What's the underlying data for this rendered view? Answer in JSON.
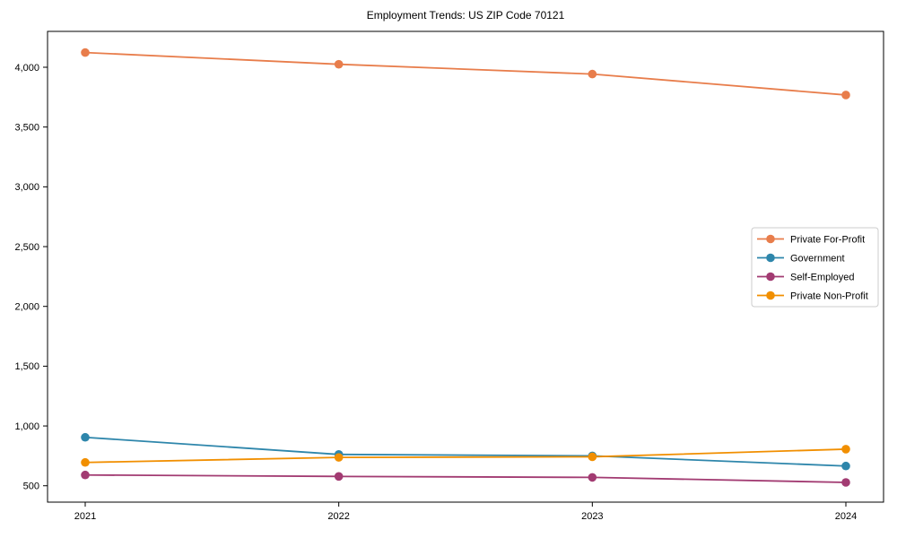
{
  "chart_data": {
    "type": "line",
    "title": "Employment Trends: US ZIP Code 70121",
    "xlabel": "",
    "ylabel": "",
    "x": [
      2021,
      2022,
      2023,
      2024
    ],
    "x_tick_labels": [
      "2021",
      "2022",
      "2023",
      "2024"
    ],
    "series": [
      {
        "name": "Private For-Profit",
        "color": "#E87D4B",
        "values": [
          4123,
          4025,
          3943,
          3768
        ]
      },
      {
        "name": "Government",
        "color": "#2E86AB",
        "values": [
          905,
          762,
          750,
          665
        ]
      },
      {
        "name": "Self-Employed",
        "color": "#A23B72",
        "values": [
          590,
          578,
          570,
          528
        ]
      },
      {
        "name": "Private Non-Profit",
        "color": "#F18F01",
        "values": [
          695,
          737,
          742,
          806
        ]
      }
    ],
    "yticks": [
      500,
      1000,
      1500,
      2000,
      2500,
      3000,
      3500,
      4000
    ],
    "ytick_labels": [
      "500",
      "1,000",
      "1,500",
      "2,000",
      "2,500",
      "3,000",
      "3,500",
      "4,000"
    ],
    "ylim": [
      363,
      4300
    ],
    "grid": false,
    "marker": "circle",
    "legend_position": "center right",
    "axis_color": "#000000",
    "legend_border_color": "#cccccc",
    "background_color": "#ffffff"
  }
}
